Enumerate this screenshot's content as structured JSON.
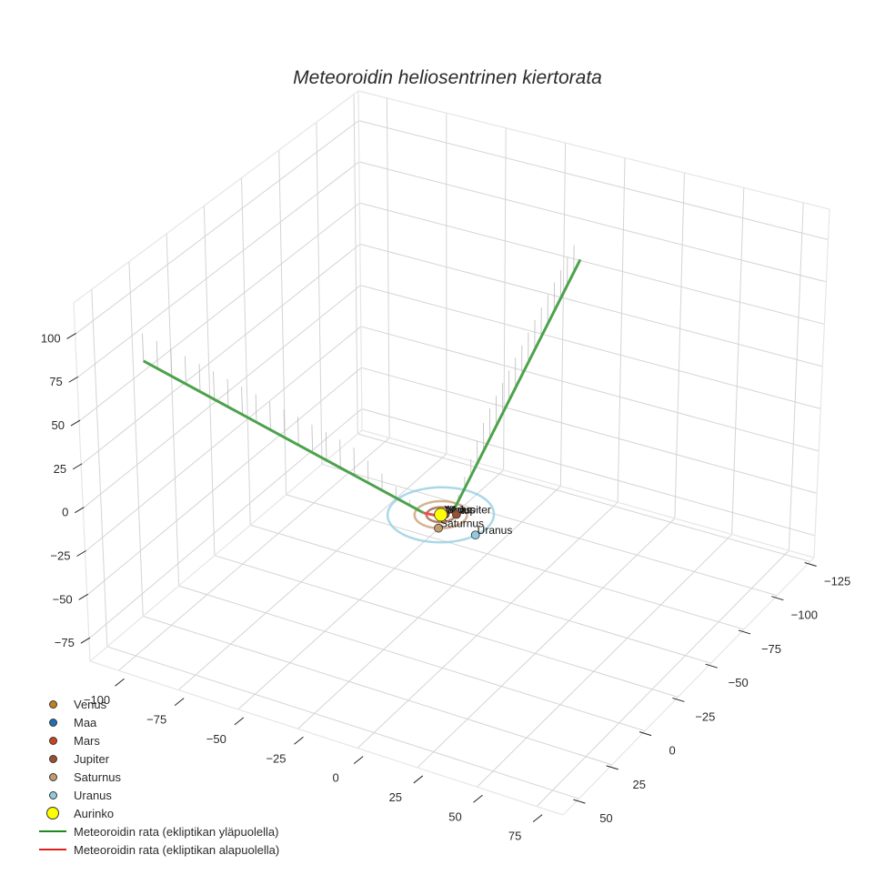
{
  "title": "Meteoroidin heliosentrinen kiertorata",
  "colors": {
    "grid": "#d4d4d4",
    "edge": "#c8c8c8",
    "tick": "#222222",
    "trajectory_above": "#4ca24c",
    "trajectory_below": "#e8504f",
    "droplines": "#bbbbbb"
  },
  "legend": {
    "items": [
      {
        "label": "Venus",
        "type": "marker",
        "color": "#c47f1e",
        "size": 9
      },
      {
        "label": "Maa",
        "type": "marker",
        "color": "#1f6fb5",
        "size": 9
      },
      {
        "label": "Mars",
        "type": "marker",
        "color": "#c9451c",
        "size": 9
      },
      {
        "label": "Jupiter",
        "type": "marker",
        "color": "#9b5130",
        "size": 9
      },
      {
        "label": "Saturnus",
        "type": "marker",
        "color": "#c59a6d",
        "size": 9
      },
      {
        "label": "Uranus",
        "type": "marker",
        "color": "#8fcbe0",
        "size": 9
      },
      {
        "label": "Aurinko",
        "type": "marker",
        "color": "#ffff00",
        "size": 14
      },
      {
        "label": "Meteoroidin rata (ekliptikan yläpuolella)",
        "type": "line",
        "color": "#1a8a1a"
      },
      {
        "label": "Meteoroidin rata (ekliptikan alapuolella)",
        "type": "line",
        "color": "#e02020"
      }
    ]
  },
  "chart_data": {
    "type": "scatter3d",
    "title": "Meteoroidin heliosentrinen kiertorata",
    "axes": {
      "x": {
        "ticks": [
          -100,
          -75,
          -50,
          -25,
          0,
          25,
          50,
          75
        ],
        "range": [
          -112,
          86
        ]
      },
      "y": {
        "ticks": [
          -125,
          -100,
          -75,
          -50,
          -25,
          0,
          25,
          50
        ],
        "range": [
          -128,
          62
        ]
      },
      "z": {
        "ticks": [
          -75,
          -50,
          -25,
          0,
          25,
          50,
          75,
          100
        ],
        "range": [
          -88,
          118
        ]
      }
    },
    "grid": true,
    "legend_position": "bottom-left",
    "planets": [
      {
        "name": "Venus",
        "x": 0.5,
        "y": -0.5,
        "z": 0
      },
      {
        "name": "Maa",
        "x": 0.8,
        "y": -0.5,
        "z": 0
      },
      {
        "name": "Mars",
        "x": 1.2,
        "y": -1.0,
        "z": 0
      },
      {
        "name": "Jupiter",
        "x": 4.8,
        "y": -3.0,
        "z": 0
      },
      {
        "name": "Saturnus",
        "x": 4.0,
        "y": 8.5,
        "z": 0
      },
      {
        "name": "Uranus",
        "x": 18.0,
        "y": 6.0,
        "z": 0
      },
      {
        "name": "Aurinko",
        "x": 0,
        "y": 0,
        "z": 0
      }
    ],
    "orbits": [
      {
        "name": "Saturnus",
        "radius": 9.5,
        "color": "#c59a6d"
      },
      {
        "name": "Jupiter",
        "radius": 5.2,
        "color": "#9b5130"
      },
      {
        "name": "Uranus",
        "radius": 19.2,
        "color": "#8fcbe0"
      }
    ],
    "series": [
      {
        "name": "Meteoroidin rata (ekliptikan yläpuolella)",
        "segment": "A",
        "points": [
          [
            -107,
            26,
            63
          ],
          [
            -6,
            2,
            0
          ]
        ]
      },
      {
        "name": "Meteoroidin rata (ekliptikan alapuolella)",
        "points": [
          [
            -6,
            2,
            0
          ],
          [
            0,
            0,
            -1
          ]
        ]
      },
      {
        "name": "Meteoroidin rata (ekliptikan yläpuolella)",
        "segment": "B",
        "points": [
          [
            3,
            -3,
            0
          ],
          [
            -12,
            -118,
            60
          ]
        ]
      }
    ]
  }
}
